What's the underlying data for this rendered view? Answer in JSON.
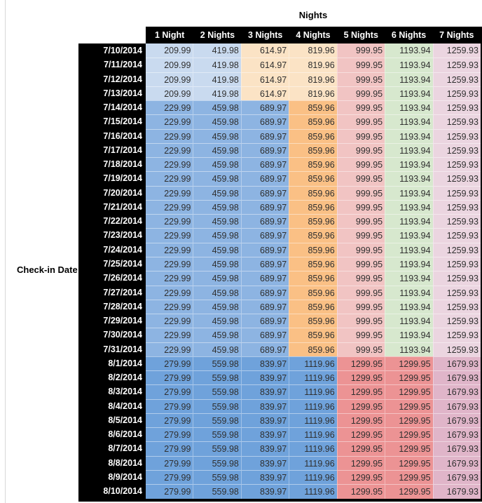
{
  "chart_data": {
    "type": "table",
    "title": "Nights",
    "row_label": "Check-in Date",
    "columns": [
      "1 Night",
      "2 Nights",
      "3 Nights",
      "4 Nights",
      "5 Nights",
      "6 Nights",
      "7 Nights"
    ],
    "rows": [
      {
        "date": "7/10/2014",
        "band": "early_july",
        "values": [
          209.99,
          419.98,
          614.97,
          819.96,
          999.95,
          1193.94,
          1259.93
        ]
      },
      {
        "date": "7/11/2014",
        "band": "early_july",
        "values": [
          209.99,
          419.98,
          614.97,
          819.96,
          999.95,
          1193.94,
          1259.93
        ]
      },
      {
        "date": "7/12/2014",
        "band": "early_july",
        "values": [
          209.99,
          419.98,
          614.97,
          819.96,
          999.95,
          1193.94,
          1259.93
        ]
      },
      {
        "date": "7/13/2014",
        "band": "early_july",
        "values": [
          209.99,
          419.98,
          614.97,
          819.96,
          999.95,
          1193.94,
          1259.93
        ]
      },
      {
        "date": "7/14/2014",
        "band": "mid_july",
        "values": [
          229.99,
          459.98,
          689.97,
          859.96,
          999.95,
          1193.94,
          1259.93
        ]
      },
      {
        "date": "7/15/2014",
        "band": "mid_july",
        "values": [
          229.99,
          459.98,
          689.97,
          859.96,
          999.95,
          1193.94,
          1259.93
        ]
      },
      {
        "date": "7/16/2014",
        "band": "mid_july",
        "values": [
          229.99,
          459.98,
          689.97,
          859.96,
          999.95,
          1193.94,
          1259.93
        ]
      },
      {
        "date": "7/17/2014",
        "band": "mid_july",
        "values": [
          229.99,
          459.98,
          689.97,
          859.96,
          999.95,
          1193.94,
          1259.93
        ]
      },
      {
        "date": "7/18/2014",
        "band": "mid_july",
        "values": [
          229.99,
          459.98,
          689.97,
          859.96,
          999.95,
          1193.94,
          1259.93
        ]
      },
      {
        "date": "7/19/2014",
        "band": "mid_july",
        "values": [
          229.99,
          459.98,
          689.97,
          859.96,
          999.95,
          1193.94,
          1259.93
        ]
      },
      {
        "date": "7/20/2014",
        "band": "mid_july",
        "values": [
          229.99,
          459.98,
          689.97,
          859.96,
          999.95,
          1193.94,
          1259.93
        ]
      },
      {
        "date": "7/21/2014",
        "band": "mid_july",
        "values": [
          229.99,
          459.98,
          689.97,
          859.96,
          999.95,
          1193.94,
          1259.93
        ]
      },
      {
        "date": "7/22/2014",
        "band": "mid_july",
        "values": [
          229.99,
          459.98,
          689.97,
          859.96,
          999.95,
          1193.94,
          1259.93
        ]
      },
      {
        "date": "7/23/2014",
        "band": "mid_july",
        "values": [
          229.99,
          459.98,
          689.97,
          859.96,
          999.95,
          1193.94,
          1259.93
        ]
      },
      {
        "date": "7/24/2014",
        "band": "mid_july",
        "values": [
          229.99,
          459.98,
          689.97,
          859.96,
          999.95,
          1193.94,
          1259.93
        ]
      },
      {
        "date": "7/25/2014",
        "band": "mid_july",
        "values": [
          229.99,
          459.98,
          689.97,
          859.96,
          999.95,
          1193.94,
          1259.93
        ]
      },
      {
        "date": "7/26/2014",
        "band": "mid_july",
        "values": [
          229.99,
          459.98,
          689.97,
          859.96,
          999.95,
          1193.94,
          1259.93
        ]
      },
      {
        "date": "7/27/2014",
        "band": "mid_july",
        "values": [
          229.99,
          459.98,
          689.97,
          859.96,
          999.95,
          1193.94,
          1259.93
        ]
      },
      {
        "date": "7/28/2014",
        "band": "mid_july",
        "values": [
          229.99,
          459.98,
          689.97,
          859.96,
          999.95,
          1193.94,
          1259.93
        ]
      },
      {
        "date": "7/29/2014",
        "band": "mid_july",
        "values": [
          229.99,
          459.98,
          689.97,
          859.96,
          999.95,
          1193.94,
          1259.93
        ]
      },
      {
        "date": "7/30/2014",
        "band": "mid_july",
        "values": [
          229.99,
          459.98,
          689.97,
          859.96,
          999.95,
          1193.94,
          1259.93
        ]
      },
      {
        "date": "7/31/2014",
        "band": "mid_july",
        "values": [
          229.99,
          459.98,
          689.97,
          859.96,
          999.95,
          1193.94,
          1259.93
        ]
      },
      {
        "date": "8/1/2014",
        "band": "august",
        "values": [
          279.99,
          559.98,
          839.97,
          1119.96,
          1299.95,
          1299.95,
          1679.93
        ]
      },
      {
        "date": "8/2/2014",
        "band": "august",
        "values": [
          279.99,
          559.98,
          839.97,
          1119.96,
          1299.95,
          1299.95,
          1679.93
        ]
      },
      {
        "date": "8/3/2014",
        "band": "august",
        "values": [
          279.99,
          559.98,
          839.97,
          1119.96,
          1299.95,
          1299.95,
          1679.93
        ]
      },
      {
        "date": "8/4/2014",
        "band": "august",
        "values": [
          279.99,
          559.98,
          839.97,
          1119.96,
          1299.95,
          1299.95,
          1679.93
        ]
      },
      {
        "date": "8/5/2014",
        "band": "august",
        "values": [
          279.99,
          559.98,
          839.97,
          1119.96,
          1299.95,
          1299.95,
          1679.93
        ]
      },
      {
        "date": "8/6/2014",
        "band": "august",
        "values": [
          279.99,
          559.98,
          839.97,
          1119.96,
          1299.95,
          1299.95,
          1679.93
        ]
      },
      {
        "date": "8/7/2014",
        "band": "august",
        "values": [
          279.99,
          559.98,
          839.97,
          1119.96,
          1299.95,
          1299.95,
          1679.93
        ]
      },
      {
        "date": "8/8/2014",
        "band": "august",
        "values": [
          279.99,
          559.98,
          839.97,
          1119.96,
          1299.95,
          1299.95,
          1679.93
        ]
      },
      {
        "date": "8/9/2014",
        "band": "august",
        "values": [
          279.99,
          559.98,
          839.97,
          1119.96,
          1299.95,
          1299.95,
          1679.93
        ]
      },
      {
        "date": "8/10/2014",
        "band": "august",
        "values": [
          279.99,
          559.98,
          839.97,
          1119.96,
          1299.95,
          1299.95,
          1679.93
        ]
      }
    ]
  },
  "colors": {
    "header_bg": "#000000",
    "header_text": "#FFFFFF",
    "value_text": "#2F2F2F",
    "light_blue": "#C9DAEF",
    "medium_blue": "#8DB4E2",
    "dark_blue": "#6FA2DB",
    "light_peach": "#FBE3C5",
    "orange": "#FAC085",
    "rose": "#F1C4C3",
    "salmon": "#EC9394",
    "green": "#D7E8CE",
    "light_pink": "#EBD5E0",
    "mauve": "#E0B5C9"
  },
  "cell_colors": {
    "early_july": [
      "#C9DAEF",
      "#C9DAEF",
      "#FBE3C5",
      "#FBE3C5",
      "#F1C4C3",
      "#D7E8CE",
      "#EBD5E0"
    ],
    "mid_july": [
      "#8DB4E2",
      "#8DB4E2",
      "#8DB4E2",
      "#FAC085",
      "#F1C4C3",
      "#D7E8CE",
      "#EBD5E0"
    ],
    "august": [
      "#6FA2DB",
      "#6FA2DB",
      "#6FA2DB",
      "#6FA2DB",
      "#EC9394",
      "#EC9394",
      "#E0B5C9"
    ]
  }
}
